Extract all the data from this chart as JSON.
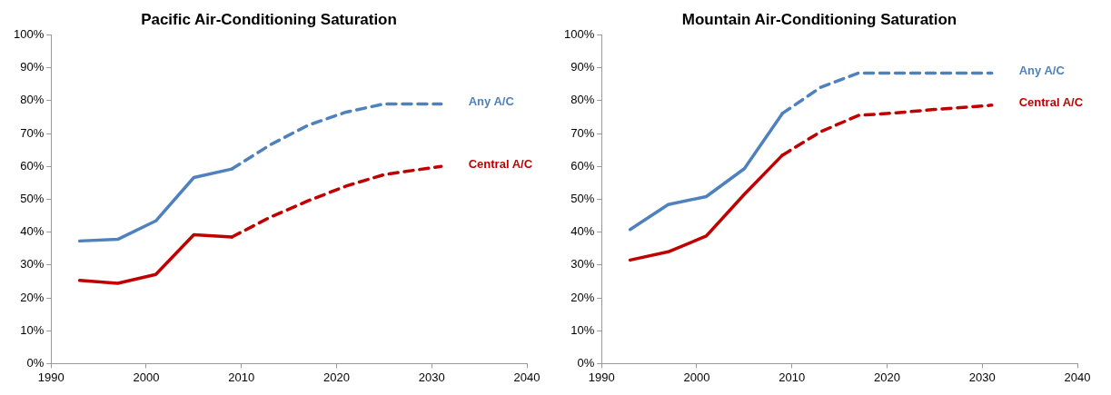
{
  "chart_data": [
    {
      "type": "line",
      "title": "Pacific Air-Conditioning Saturation",
      "xlim": [
        1990,
        2040
      ],
      "xticks": [
        1990,
        2000,
        2010,
        2020,
        2030,
        2040
      ],
      "ylim": [
        0,
        100
      ],
      "yticks": [
        {
          "value": 0,
          "label": "0%"
        },
        {
          "value": 10,
          "label": "10%"
        },
        {
          "value": 20,
          "label": "20%"
        },
        {
          "value": 30,
          "label": "30%"
        },
        {
          "value": 40,
          "label": "40%"
        },
        {
          "value": 50,
          "label": "50%"
        },
        {
          "value": 60,
          "label": "60%"
        },
        {
          "value": 70,
          "label": "70%"
        },
        {
          "value": 80,
          "label": "80%"
        },
        {
          "value": 90,
          "label": "90%"
        },
        {
          "value": 100,
          "label": "100%"
        }
      ],
      "grid": false,
      "legend": false,
      "series": [
        {
          "color": "#4f81bd",
          "line_style": "solid",
          "x": [
            1993,
            1997,
            2001,
            2005,
            2009
          ],
          "values": [
            37.3,
            37.8,
            43.4,
            56.6,
            59.2
          ]
        },
        {
          "name": "Any A/C",
          "color": "#4f81bd",
          "line_style": "dashed",
          "x": [
            2009,
            2013,
            2017,
            2021,
            2025,
            2031
          ],
          "values": [
            59.2,
            66.5,
            72.5,
            76.5,
            79,
            79
          ]
        },
        {
          "color": "#c00000",
          "line_style": "solid",
          "x": [
            1993,
            1997,
            2001,
            2005,
            2009
          ],
          "values": [
            25.3,
            24.4,
            27.1,
            39.2,
            38.5
          ]
        },
        {
          "name": "Central A/C",
          "color": "#c00000",
          "line_style": "dashed",
          "x": [
            2009,
            2013,
            2017,
            2021,
            2025,
            2031
          ],
          "values": [
            38.5,
            44.5,
            49.5,
            54,
            57.5,
            60
          ]
        }
      ]
    },
    {
      "type": "line",
      "title": "Mountain Air-Conditioning Saturation",
      "xlim": [
        1990,
        2040
      ],
      "xticks": [
        1990,
        2000,
        2010,
        2020,
        2030,
        2040
      ],
      "ylim": [
        0,
        100
      ],
      "yticks": [
        {
          "value": 0,
          "label": "0%"
        },
        {
          "value": 10,
          "label": "10%"
        },
        {
          "value": 20,
          "label": "20%"
        },
        {
          "value": 30,
          "label": "30%"
        },
        {
          "value": 40,
          "label": "40%"
        },
        {
          "value": 50,
          "label": "50%"
        },
        {
          "value": 60,
          "label": "60%"
        },
        {
          "value": 70,
          "label": "70%"
        },
        {
          "value": 80,
          "label": "80%"
        },
        {
          "value": 90,
          "label": "90%"
        },
        {
          "value": 100,
          "label": "100%"
        }
      ],
      "grid": false,
      "legend": false,
      "series": [
        {
          "color": "#4f81bd",
          "line_style": "solid",
          "x": [
            1993,
            1997,
            2001,
            2005,
            2009
          ],
          "values": [
            40.8,
            48.4,
            50.8,
            59.3,
            76.1
          ]
        },
        {
          "name": "Any A/C",
          "color": "#4f81bd",
          "line_style": "dashed",
          "x": [
            2009,
            2013,
            2017,
            2031
          ],
          "values": [
            76.1,
            84,
            88.4,
            88.4
          ]
        },
        {
          "color": "#c00000",
          "line_style": "solid",
          "x": [
            1993,
            1997,
            2001,
            2005,
            2009
          ],
          "values": [
            31.5,
            34,
            38.8,
            51.5,
            63.4
          ]
        },
        {
          "name": "Central A/C",
          "color": "#c00000",
          "line_style": "dashed",
          "x": [
            2009,
            2013,
            2017,
            2021,
            2025,
            2031
          ],
          "values": [
            63.4,
            70.5,
            75.5,
            76.3,
            77.3,
            78.6
          ]
        }
      ]
    }
  ]
}
